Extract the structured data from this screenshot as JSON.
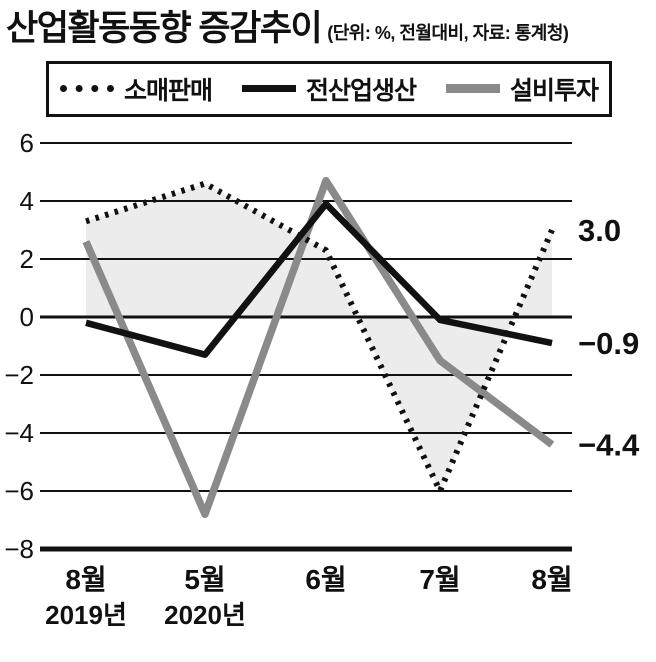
{
  "header": {
    "title": "산업활동동향 증감추이",
    "subtitle": "(단위: %, 전월대비, 자료: 통계청)"
  },
  "legend": {
    "items": [
      {
        "label": "소매판매",
        "style": "dotted"
      },
      {
        "label": "전산업생산",
        "style": "solid-black"
      },
      {
        "label": "설비투자",
        "style": "solid-gray"
      }
    ]
  },
  "chart_data": {
    "type": "line",
    "x_labels": [
      {
        "month": "8월",
        "year": "2019년"
      },
      {
        "month": "5월",
        "year": "2020년"
      },
      {
        "month": "6월",
        "year": ""
      },
      {
        "month": "7월",
        "year": ""
      },
      {
        "month": "8월",
        "year": ""
      }
    ],
    "series": [
      {
        "id": "retail-sales",
        "name": "소매판매",
        "values": [
          3.3,
          4.6,
          2.3,
          -6.0,
          3.0
        ],
        "style": "dotted",
        "color": "#111111",
        "width": 6,
        "end_label": "3.0"
      },
      {
        "id": "industrial-production",
        "name": "전산업생산",
        "values": [
          -0.2,
          -1.3,
          3.9,
          -0.1,
          -0.9
        ],
        "style": "solid",
        "color": "#111111",
        "width": 6.5,
        "end_label": "−0.9"
      },
      {
        "id": "facility-investment",
        "name": "설비투자",
        "values": [
          2.6,
          -6.8,
          4.7,
          -1.5,
          -4.4
        ],
        "style": "solid",
        "color": "#8a8a8a",
        "width": 7.5,
        "end_label": "−4.4"
      }
    ],
    "y_ticks": [
      6,
      4,
      2,
      0,
      -2,
      -4,
      -6,
      -8
    ],
    "ylim": [
      -8,
      6
    ],
    "grid": true,
    "legend_position": "top",
    "fill_series": "소매판매",
    "fill_color": "#ececec",
    "colors": {
      "axis": "#111111",
      "grid": "#111111",
      "end_label": "#111111"
    }
  }
}
